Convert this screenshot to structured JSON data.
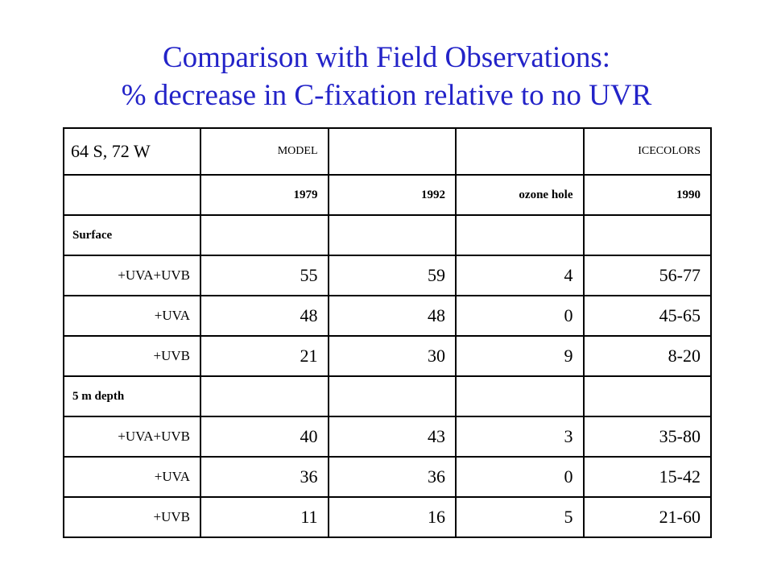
{
  "title": {
    "line1": "Comparison with Field Observations:",
    "line2": "% decrease in C-fixation relative to no UVR"
  },
  "table": {
    "location": "64 S, 72 W",
    "group_model": "MODEL",
    "group_field": "ICECOLORS",
    "columns": [
      "1979",
      "1992",
      "ozone hole",
      "1990"
    ],
    "sections": [
      {
        "label": "Surface",
        "rows": [
          {
            "treatment": "+UVA+UVB",
            "values": [
              "55",
              "59",
              "4",
              "56-77"
            ]
          },
          {
            "treatment": "+UVA",
            "values": [
              "48",
              "48",
              "0",
              "45-65"
            ]
          },
          {
            "treatment": "+UVB",
            "values": [
              "21",
              "30",
              "9",
              "8-20"
            ]
          }
        ]
      },
      {
        "label": "5 m depth",
        "rows": [
          {
            "treatment": "+UVA+UVB",
            "values": [
              "40",
              "43",
              "3",
              "35-80"
            ]
          },
          {
            "treatment": "+UVA",
            "values": [
              "36",
              "36",
              "0",
              "15-42"
            ]
          },
          {
            "treatment": "+UVB",
            "values": [
              "11",
              "16",
              "5",
              "21-60"
            ]
          }
        ]
      }
    ]
  }
}
